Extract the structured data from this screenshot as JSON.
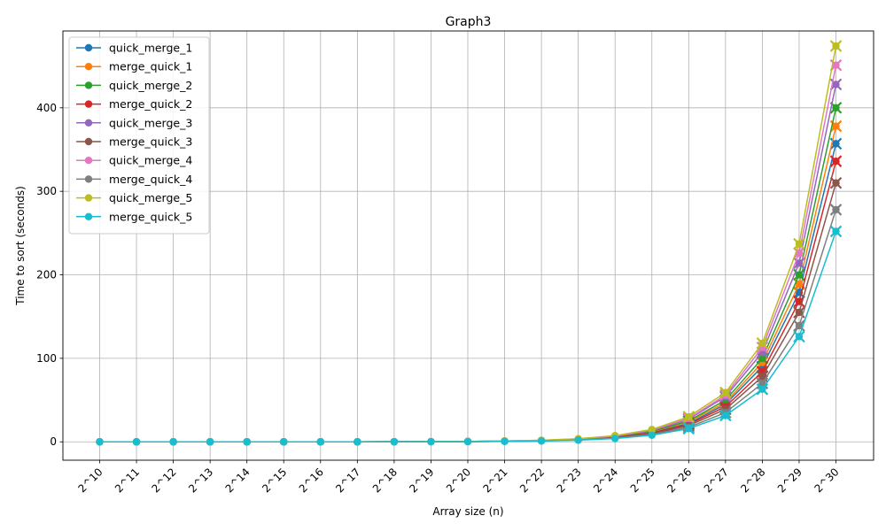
{
  "chart_data": {
    "type": "line",
    "title": "Graph3",
    "xlabel": "Array size (n)",
    "ylabel": "Time to sort (seconds)",
    "categories": [
      "2^10",
      "2^11",
      "2^12",
      "2^13",
      "2^14",
      "2^15",
      "2^16",
      "2^17",
      "2^18",
      "2^19",
      "2^20",
      "2^21",
      "2^22",
      "2^23",
      "2^24",
      "2^25",
      "2^26",
      "2^27",
      "2^28",
      "2^29",
      "2^30"
    ],
    "ylim": [
      -22,
      492
    ],
    "yticks": [
      0,
      100,
      200,
      300,
      400
    ],
    "grid": true,
    "legend_position": "upper-left",
    "series": [
      {
        "name": "quick_merge_1",
        "color": "#1f77b4",
        "values": [
          0,
          0,
          0,
          0,
          0,
          0,
          0,
          0,
          0.1,
          0.2,
          0.4,
          0.8,
          1.4,
          2.7,
          5.5,
          11,
          22,
          45,
          90,
          179,
          357
        ]
      },
      {
        "name": "merge_quick_1",
        "color": "#ff7f0e",
        "values": [
          0,
          0,
          0,
          0,
          0,
          0,
          0,
          0,
          0.1,
          0.2,
          0.4,
          0.9,
          1.5,
          2.9,
          5.8,
          12,
          24,
          47,
          95,
          189,
          378
        ]
      },
      {
        "name": "quick_merge_2",
        "color": "#2ca02c",
        "values": [
          0,
          0,
          0,
          0,
          0,
          0,
          0,
          0,
          0.1,
          0.2,
          0.4,
          0.9,
          1.6,
          3.1,
          6.2,
          12.5,
          25,
          50,
          100,
          200,
          400
        ]
      },
      {
        "name": "merge_quick_2",
        "color": "#d62728",
        "values": [
          0,
          0,
          0,
          0,
          0,
          0,
          0,
          0,
          0.1,
          0.2,
          0.3,
          0.7,
          1.3,
          2.6,
          5.2,
          10.5,
          21,
          42,
          84,
          168,
          336
        ]
      },
      {
        "name": "quick_merge_3",
        "color": "#9467bd",
        "values": [
          0,
          0,
          0,
          0,
          0,
          0,
          0,
          0,
          0.1,
          0.2,
          0.4,
          1.0,
          1.7,
          3.3,
          6.7,
          13.4,
          27,
          54,
          107,
          214,
          428
        ]
      },
      {
        "name": "merge_quick_3",
        "color": "#8c564b",
        "values": [
          0,
          0,
          0,
          0,
          0,
          0,
          0,
          0,
          0.1,
          0.2,
          0.3,
          0.7,
          1.2,
          2.4,
          4.8,
          9.7,
          19.4,
          39,
          78,
          155,
          310
        ]
      },
      {
        "name": "quick_merge_4",
        "color": "#e377c2",
        "values": [
          0,
          0,
          0,
          0,
          0,
          0,
          0,
          0,
          0.1,
          0.2,
          0.4,
          1.0,
          1.8,
          3.5,
          7.0,
          14.1,
          28,
          56,
          113,
          226,
          451
        ]
      },
      {
        "name": "merge_quick_4",
        "color": "#7f7f7f",
        "values": [
          0,
          0,
          0,
          0,
          0,
          0,
          0,
          0,
          0.1,
          0.2,
          0.3,
          0.6,
          1.1,
          2.2,
          4.3,
          8.7,
          17.4,
          35,
          70,
          139,
          278
        ]
      },
      {
        "name": "quick_merge_5",
        "color": "#bcbd22",
        "values": [
          0,
          0,
          0,
          0,
          0,
          0,
          0,
          0,
          0.1,
          0.2,
          0.5,
          1.1,
          1.9,
          3.7,
          7.4,
          14.8,
          30,
          59,
          118,
          237,
          474
        ]
      },
      {
        "name": "merge_quick_5",
        "color": "#17becf",
        "values": [
          0,
          0,
          0,
          0,
          0,
          0,
          0,
          0,
          0.1,
          0.2,
          0.3,
          0.5,
          1.0,
          2.0,
          3.9,
          7.9,
          15.8,
          31.5,
          63,
          126,
          252
        ]
      }
    ]
  }
}
